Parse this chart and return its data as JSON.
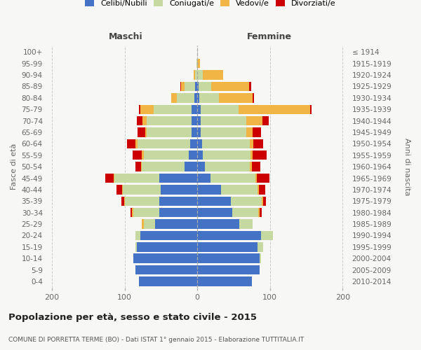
{
  "age_groups": [
    "100+",
    "95-99",
    "90-94",
    "85-89",
    "80-84",
    "75-79",
    "70-74",
    "65-69",
    "60-64",
    "55-59",
    "50-54",
    "45-49",
    "40-44",
    "35-39",
    "30-34",
    "25-29",
    "20-24",
    "15-19",
    "10-14",
    "5-9",
    "0-4"
  ],
  "birth_years": [
    "≤ 1914",
    "1915-1919",
    "1920-1924",
    "1925-1929",
    "1930-1934",
    "1935-1939",
    "1940-1944",
    "1945-1949",
    "1950-1954",
    "1955-1959",
    "1960-1964",
    "1965-1969",
    "1970-1974",
    "1975-1979",
    "1980-1984",
    "1985-1989",
    "1990-1994",
    "1995-1999",
    "2000-2004",
    "2005-2009",
    "2010-2014"
  ],
  "male_celibi": [
    0,
    0,
    0,
    3,
    4,
    8,
    8,
    8,
    10,
    12,
    18,
    52,
    50,
    52,
    52,
    58,
    78,
    83,
    88,
    85,
    80
  ],
  "male_coniugati": [
    0,
    1,
    3,
    15,
    24,
    52,
    62,
    62,
    72,
    62,
    58,
    62,
    52,
    48,
    36,
    16,
    7,
    2,
    0,
    0,
    0
  ],
  "male_vedovi": [
    0,
    0,
    2,
    4,
    8,
    18,
    5,
    2,
    3,
    2,
    1,
    1,
    1,
    1,
    2,
    2,
    0,
    0,
    0,
    0,
    0
  ],
  "male_divorziati": [
    0,
    0,
    0,
    1,
    0,
    2,
    8,
    10,
    12,
    13,
    8,
    12,
    8,
    3,
    2,
    0,
    0,
    0,
    0,
    0,
    0
  ],
  "female_nubili": [
    0,
    0,
    0,
    2,
    3,
    5,
    5,
    5,
    7,
    8,
    10,
    18,
    33,
    46,
    48,
    58,
    88,
    83,
    86,
    86,
    75
  ],
  "female_coniugate": [
    0,
    0,
    8,
    17,
    27,
    52,
    62,
    62,
    65,
    65,
    62,
    62,
    50,
    43,
    36,
    18,
    16,
    8,
    2,
    0,
    0
  ],
  "female_vedove": [
    0,
    4,
    28,
    52,
    46,
    98,
    23,
    9,
    5,
    3,
    3,
    2,
    2,
    2,
    2,
    0,
    0,
    0,
    0,
    0,
    0
  ],
  "female_divorziate": [
    0,
    0,
    0,
    3,
    2,
    2,
    8,
    12,
    14,
    19,
    12,
    17,
    8,
    3,
    3,
    0,
    0,
    0,
    0,
    0,
    0
  ],
  "colors": {
    "celibi": "#4472c4",
    "coniugati": "#c5d9a0",
    "vedovi": "#f0b544",
    "divorziati": "#cc0000"
  },
  "xlim": 210,
  "title": "Popolazione per età, sesso e stato civile - 2015",
  "subtitle": "COMUNE DI PORRETTA TERME (BO) - Dati ISTAT 1° gennaio 2015 - Elaborazione TUTTITALIA.IT",
  "ylabel_left": "Fasce di età",
  "ylabel_right": "Anni di nascita",
  "xlabel_left": "Maschi",
  "xlabel_right": "Femmine",
  "bg_color": "#f7f7f5"
}
